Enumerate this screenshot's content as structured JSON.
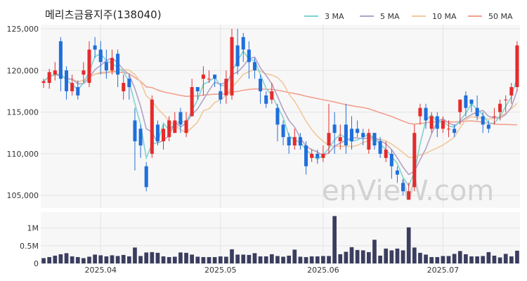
{
  "chart_data": [
    {
      "type": "candlestick",
      "title": "메리츠금융지주(138040)",
      "ylim": [
        103500,
        125500
      ],
      "y_ticks": [
        105000,
        110000,
        115000,
        120000,
        125000
      ],
      "y_tick_labels": [
        "105,000",
        "110,000",
        "115,000",
        "120,000",
        "125,000"
      ],
      "x_ticks": [
        {
          "index": 10,
          "label": "2025.04"
        },
        {
          "index": 31,
          "label": "2025.05"
        },
        {
          "index": 49,
          "label": "2025.06"
        },
        {
          "index": 70,
          "label": "2025.07"
        }
      ],
      "legend": [
        {
          "name": "3 MA",
          "color": "#7fd3d3"
        },
        {
          "name": "5 MA",
          "color": "#b3a1c7"
        },
        {
          "name": "10 MA",
          "color": "#f2c89a"
        },
        {
          "name": "50 MA",
          "color": "#f2a08e"
        }
      ],
      "grid": true,
      "up_color": "#e52b2b",
      "down_color": "#1f6fdc",
      "watermark": "enVieW.com",
      "candles": [
        [
          118500,
          118700,
          117900,
          119000
        ],
        [
          118500,
          119800,
          117800,
          120200
        ],
        [
          119500,
          120000,
          118800,
          121000
        ],
        [
          123500,
          119000,
          117500,
          124000
        ],
        [
          120000,
          117500,
          116500,
          120500
        ],
        [
          117500,
          118500,
          117000,
          119500
        ],
        [
          118000,
          117000,
          116500,
          118800
        ],
        [
          119500,
          120000,
          118500,
          121000
        ],
        [
          118500,
          122500,
          118000,
          123500
        ],
        [
          123000,
          122500,
          121500,
          124000
        ],
        [
          122500,
          121000,
          119500,
          123500
        ],
        [
          121000,
          120000,
          119000,
          122500
        ],
        [
          120000,
          121500,
          119500,
          122500
        ],
        [
          122000,
          119500,
          118000,
          122500
        ],
        [
          117500,
          118500,
          116500,
          119500
        ],
        [
          119000,
          118000,
          116500,
          119500
        ],
        [
          114000,
          111500,
          108000,
          115500
        ],
        [
          113000,
          111000,
          109500,
          113500
        ],
        [
          108500,
          106000,
          105500,
          109000
        ],
        [
          110000,
          116500,
          109500,
          117000
        ],
        [
          113500,
          111500,
          111000,
          114000
        ],
        [
          111500,
          113000,
          110500,
          113500
        ],
        [
          112000,
          114000,
          111500,
          114500
        ],
        [
          112500,
          114000,
          112500,
          115000
        ],
        [
          115000,
          113500,
          112500,
          115500
        ],
        [
          112500,
          114000,
          112000,
          115000
        ],
        [
          114500,
          118000,
          114500,
          119000
        ],
        [
          118000,
          117500,
          116500,
          118000
        ],
        [
          119000,
          119500,
          117000,
          120500
        ],
        [
          119000,
          119000,
          118500,
          120000
        ],
        [
          119500,
          119000,
          118000,
          119500
        ],
        [
          117500,
          116500,
          116000,
          118500
        ],
        [
          117000,
          119000,
          116000,
          120000
        ],
        [
          117000,
          124000,
          116500,
          125000
        ],
        [
          123000,
          120500,
          119500,
          125000
        ],
        [
          124000,
          122500,
          121000,
          124500
        ],
        [
          122500,
          121000,
          119000,
          123500
        ],
        [
          121000,
          120000,
          119000,
          121500
        ],
        [
          119000,
          117500,
          116000,
          119500
        ],
        [
          117000,
          116000,
          115500,
          117500
        ],
        [
          116500,
          117500,
          116000,
          118500
        ],
        [
          115500,
          113500,
          111500,
          116000
        ],
        [
          113500,
          112000,
          111000,
          114000
        ],
        [
          112000,
          111000,
          110000,
          112500
        ],
        [
          111000,
          112000,
          110500,
          113000
        ],
        [
          112000,
          111000,
          110500,
          112500
        ],
        [
          111000,
          108500,
          107500,
          111500
        ],
        [
          109500,
          110000,
          109000,
          110500
        ],
        [
          110000,
          109500,
          108800,
          110500
        ],
        [
          109500,
          110000,
          109000,
          111000
        ],
        [
          111000,
          112500,
          110000,
          116000
        ],
        [
          113500,
          112500,
          110000,
          115000
        ],
        [
          111500,
          112000,
          110500,
          113500
        ],
        [
          113500,
          111000,
          110000,
          116000
        ],
        [
          113000,
          111500,
          110500,
          114500
        ],
        [
          113000,
          112500,
          112000,
          114000
        ],
        [
          112500,
          112000,
          111000,
          113000
        ],
        [
          110500,
          112500,
          110000,
          113000
        ],
        [
          112500,
          111000,
          110500,
          112500
        ],
        [
          111500,
          110000,
          109500,
          112000
        ],
        [
          109500,
          110500,
          109000,
          111500
        ],
        [
          110000,
          108500,
          107000,
          110500
        ],
        [
          108000,
          107500,
          106500,
          108500
        ],
        [
          106500,
          105500,
          105000,
          107000
        ],
        [
          104500,
          105500,
          104500,
          106500
        ],
        [
          106000,
          112500,
          105500,
          113500
        ],
        [
          114500,
          115500,
          113500,
          116000
        ],
        [
          115500,
          114000,
          113000,
          116000
        ],
        [
          113000,
          114500,
          112500,
          115000
        ],
        [
          114500,
          113000,
          112000,
          115000
        ],
        [
          113000,
          114000,
          112500,
          114500
        ],
        [
          113000,
          113000,
          112000,
          114000
        ],
        [
          113000,
          112500,
          112000,
          113500
        ],
        [
          115000,
          116500,
          113500,
          116500
        ],
        [
          117000,
          115500,
          114500,
          117500
        ],
        [
          116500,
          116000,
          115000,
          116500
        ],
        [
          115500,
          114500,
          114000,
          117000
        ],
        [
          114500,
          113500,
          112500,
          115000
        ],
        [
          113500,
          113000,
          112500,
          114000
        ],
        [
          114500,
          114500,
          113500,
          115500
        ],
        [
          115000,
          116000,
          114000,
          116500
        ],
        [
          116500,
          116500,
          115000,
          117000
        ],
        [
          117000,
          118000,
          116000,
          118500
        ],
        [
          118000,
          123000,
          117500,
          123500
        ]
      ]
    },
    {
      "type": "bar",
      "ylim": [
        0,
        1450000
      ],
      "y_ticks": [
        0,
        500000,
        1000000
      ],
      "y_tick_labels": [
        "0",
        "0.5M",
        "1M"
      ],
      "color": "#3b3d5f",
      "values": [
        150000,
        180000,
        220000,
        260000,
        290000,
        200000,
        180000,
        150000,
        190000,
        250000,
        230000,
        200000,
        230000,
        210000,
        240000,
        200000,
        450000,
        210000,
        310000,
        320000,
        300000,
        200000,
        180000,
        190000,
        310000,
        300000,
        250000,
        190000,
        180000,
        180000,
        180000,
        200000,
        190000,
        400000,
        250000,
        250000,
        240000,
        290000,
        200000,
        200000,
        260000,
        210000,
        190000,
        220000,
        390000,
        190000,
        180000,
        200000,
        200000,
        210000,
        210000,
        1340000,
        260000,
        330000,
        460000,
        380000,
        370000,
        320000,
        670000,
        220000,
        420000,
        370000,
        420000,
        370000,
        1020000,
        450000,
        300000,
        250000,
        180000,
        180000,
        210000,
        210000,
        270000,
        350000,
        260000,
        200000,
        200000,
        210000,
        320000,
        220000,
        170000,
        270000,
        200000,
        360000
      ]
    }
  ]
}
